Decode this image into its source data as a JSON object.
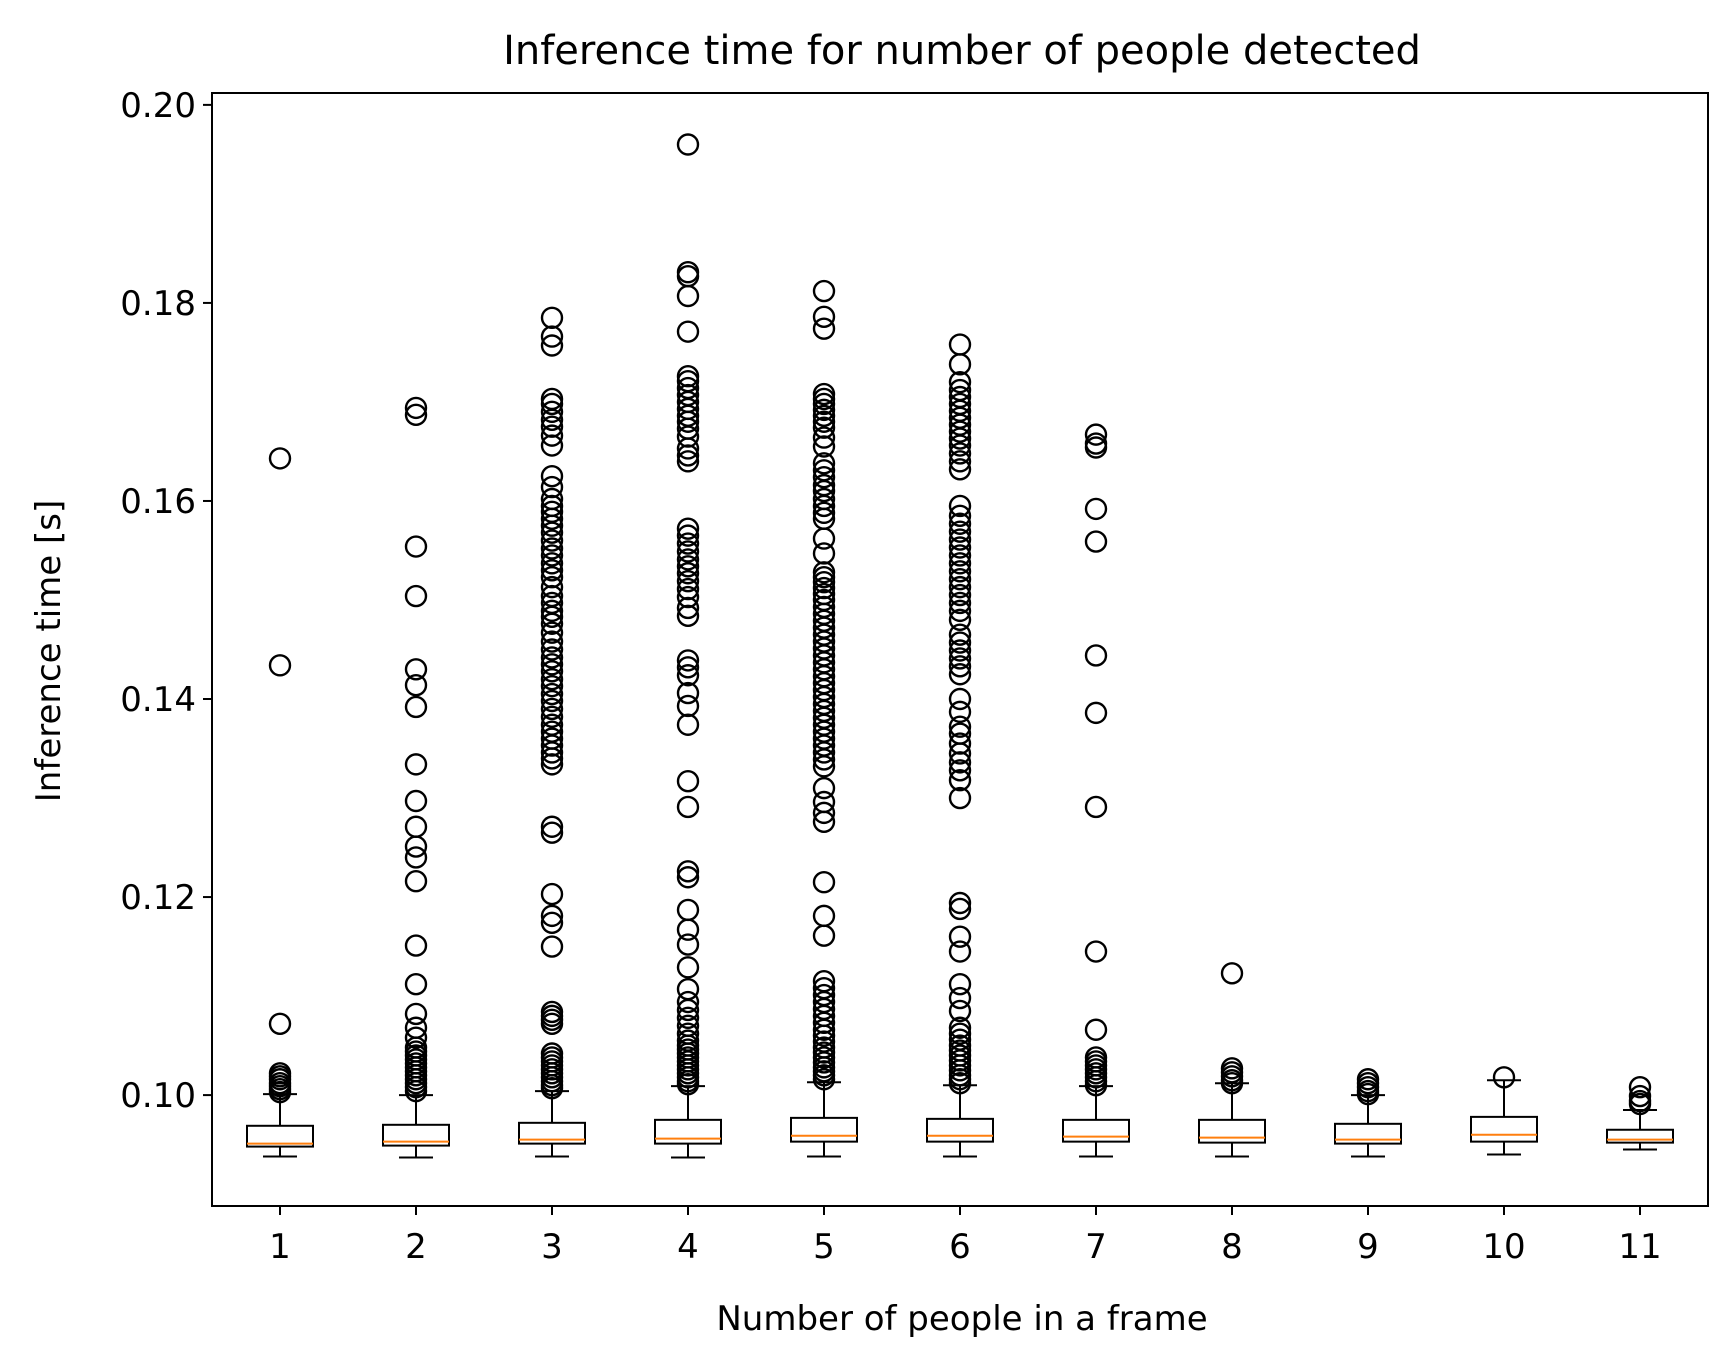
{
  "chart_data": {
    "type": "boxplot",
    "title": "Inference time for number of people detected",
    "xlabel": "Number of people in a frame",
    "ylabel": "Inference time [s]",
    "ylim": [
      0.0888,
      0.2012
    ],
    "yticks": [
      "0.10",
      "0.12",
      "0.14",
      "0.16",
      "0.18",
      "0.20"
    ],
    "grid": false,
    "colors": {
      "box": "#000000",
      "median": "#ff7f0e",
      "flier": "#000000"
    },
    "categories": [
      "1",
      "2",
      "3",
      "4",
      "5",
      "6",
      "7",
      "8",
      "9",
      "10",
      "11"
    ],
    "boxes": [
      {
        "category": "1",
        "whislo": 0.0938,
        "q1": 0.0948,
        "med": 0.0951,
        "q3": 0.0969,
        "whishi": 0.1001,
        "fliers": [
          0.1643,
          0.1434,
          0.1072,
          0.1022,
          0.1019,
          0.1016,
          0.1012,
          0.1009,
          0.1006,
          0.1003
        ]
      },
      {
        "category": "2",
        "whislo": 0.0937,
        "q1": 0.0949,
        "med": 0.0953,
        "q3": 0.097,
        "whishi": 0.1,
        "fliers": [
          0.1694,
          0.1687,
          0.1554,
          0.1504,
          0.143,
          0.1414,
          0.1392,
          0.1334,
          0.1297,
          0.1271,
          0.1251,
          0.124,
          0.1216,
          0.1151,
          0.1112,
          0.1082,
          0.1068,
          0.1058,
          0.1048,
          0.1044,
          0.104,
          0.1036,
          0.1032,
          0.1028,
          0.1024,
          0.102,
          0.1016,
          0.1012,
          0.1008,
          0.1004
        ]
      },
      {
        "category": "3",
        "whislo": 0.0938,
        "q1": 0.0951,
        "med": 0.0955,
        "q3": 0.0972,
        "whishi": 0.1004,
        "fliers": [
          0.1785,
          0.1766,
          0.1757,
          0.1703,
          0.1698,
          0.169,
          0.1682,
          0.1675,
          0.1666,
          0.1656,
          0.1625,
          0.1614,
          0.1602,
          0.1595,
          0.1589,
          0.1582,
          0.1575,
          0.1568,
          0.156,
          0.1552,
          0.1545,
          0.1537,
          0.153,
          0.1523,
          0.1513,
          0.1504,
          0.1497,
          0.1489,
          0.1483,
          0.1476,
          0.1467,
          0.1458,
          0.145,
          0.1442,
          0.1435,
          0.1428,
          0.142,
          0.1413,
          0.1405,
          0.1398,
          0.139,
          0.1382,
          0.1374,
          0.1367,
          0.136,
          0.1353,
          0.1346,
          0.134,
          0.1334,
          0.1271,
          0.1265,
          0.1203,
          0.1181,
          0.1174,
          0.115,
          0.1084,
          0.108,
          0.1076,
          0.1072,
          0.1042,
          0.1038,
          0.1034,
          0.103,
          0.1026,
          0.1022,
          0.1018,
          0.1014,
          0.101,
          0.1007
        ]
      },
      {
        "category": "4",
        "whislo": 0.0937,
        "q1": 0.0951,
        "med": 0.0956,
        "q3": 0.0975,
        "whishi": 0.1009,
        "fliers": [
          0.196,
          0.1831,
          0.1827,
          0.1807,
          0.1771,
          0.1726,
          0.1721,
          0.1714,
          0.1707,
          0.17,
          0.1693,
          0.1686,
          0.168,
          0.1673,
          0.1665,
          0.1653,
          0.1646,
          0.164,
          0.1572,
          0.1565,
          0.1557,
          0.1549,
          0.1541,
          0.1534,
          0.1527,
          0.1519,
          0.1511,
          0.1503,
          0.1492,
          0.1484,
          0.1439,
          0.1432,
          0.1424,
          0.1406,
          0.1393,
          0.1374,
          0.1317,
          0.1291,
          0.1226,
          0.122,
          0.1187,
          0.1167,
          0.1152,
          0.1129,
          0.1107,
          0.1094,
          0.1086,
          0.1078,
          0.107,
          0.1062,
          0.1055,
          0.105,
          0.1046,
          0.1042,
          0.1038,
          0.1034,
          0.103,
          0.1026,
          0.1022,
          0.1018,
          0.1014,
          0.1011
        ]
      },
      {
        "category": "5",
        "whislo": 0.0938,
        "q1": 0.0953,
        "med": 0.0959,
        "q3": 0.0977,
        "whishi": 0.1013,
        "fliers": [
          0.1812,
          0.1786,
          0.1774,
          0.1708,
          0.1703,
          0.1698,
          0.1692,
          0.1686,
          0.168,
          0.1674,
          0.1664,
          0.1655,
          0.1638,
          0.1631,
          0.1624,
          0.1616,
          0.161,
          0.1602,
          0.1595,
          0.1588,
          0.1582,
          0.1562,
          0.1547,
          0.1528,
          0.1523,
          0.1518,
          0.1512,
          0.1506,
          0.15,
          0.1493,
          0.1486,
          0.1479,
          0.1472,
          0.1465,
          0.1458,
          0.1451,
          0.1444,
          0.1437,
          0.143,
          0.1423,
          0.1416,
          0.1409,
          0.1402,
          0.1395,
          0.1388,
          0.1381,
          0.1374,
          0.1367,
          0.136,
          0.1353,
          0.1346,
          0.1339,
          0.1332,
          0.131,
          0.1296,
          0.1285,
          0.1276,
          0.1215,
          0.1181,
          0.1161,
          0.1115,
          0.1108,
          0.1101,
          0.1094,
          0.1087,
          0.108,
          0.1073,
          0.1066,
          0.106,
          0.1054,
          0.1048,
          0.1043,
          0.1038,
          0.1033,
          0.1028,
          0.1024,
          0.102,
          0.1016
        ]
      },
      {
        "category": "6",
        "whislo": 0.0938,
        "q1": 0.0953,
        "med": 0.0959,
        "q3": 0.0976,
        "whishi": 0.101,
        "fliers": [
          0.1758,
          0.1738,
          0.172,
          0.1712,
          0.1705,
          0.1698,
          0.1691,
          0.1684,
          0.1677,
          0.167,
          0.1663,
          0.1656,
          0.1648,
          0.164,
          0.1632,
          0.1595,
          0.1585,
          0.1577,
          0.1569,
          0.1561,
          0.1553,
          0.1545,
          0.1537,
          0.1529,
          0.1521,
          0.1513,
          0.1505,
          0.1497,
          0.1489,
          0.148,
          0.1465,
          0.1457,
          0.1449,
          0.1441,
          0.1433,
          0.1425,
          0.14,
          0.1387,
          0.1372,
          0.1365,
          0.1355,
          0.1345,
          0.1336,
          0.1328,
          0.1318,
          0.13,
          0.1194,
          0.1188,
          0.116,
          0.1145,
          0.1112,
          0.1098,
          0.1085,
          0.1068,
          0.1062,
          0.1056,
          0.105,
          0.1045,
          0.104,
          0.1035,
          0.103,
          0.1025,
          0.102,
          0.1016,
          0.1012
        ]
      },
      {
        "category": "7",
        "whislo": 0.0938,
        "q1": 0.0953,
        "med": 0.0958,
        "q3": 0.0975,
        "whishi": 0.1009,
        "fliers": [
          0.1667,
          0.1658,
          0.1654,
          0.1592,
          0.1559,
          0.1444,
          0.1386,
          0.1291,
          0.1145,
          0.1066,
          0.1038,
          0.1034,
          0.103,
          0.1026,
          0.1022,
          0.1018,
          0.1014,
          0.101
        ]
      },
      {
        "category": "8",
        "whislo": 0.0938,
        "q1": 0.0952,
        "med": 0.0957,
        "q3": 0.0975,
        "whishi": 0.1012,
        "fliers": [
          0.1123,
          0.1027,
          0.1023,
          0.1019,
          0.1015,
          0.1012
        ]
      },
      {
        "category": "9",
        "whislo": 0.0938,
        "q1": 0.0951,
        "med": 0.0955,
        "q3": 0.0971,
        "whishi": 0.1,
        "fliers": [
          0.1016,
          0.1012,
          0.1008,
          0.1004,
          0.1001
        ]
      },
      {
        "category": "10",
        "whislo": 0.094,
        "q1": 0.0953,
        "med": 0.096,
        "q3": 0.0978,
        "whishi": 0.1015,
        "fliers": [
          0.1018
        ]
      },
      {
        "category": "11",
        "whislo": 0.0945,
        "q1": 0.0952,
        "med": 0.0955,
        "q3": 0.0965,
        "whishi": 0.0985,
        "fliers": [
          0.1008,
          0.0999,
          0.0994,
          0.0991
        ]
      }
    ]
  }
}
